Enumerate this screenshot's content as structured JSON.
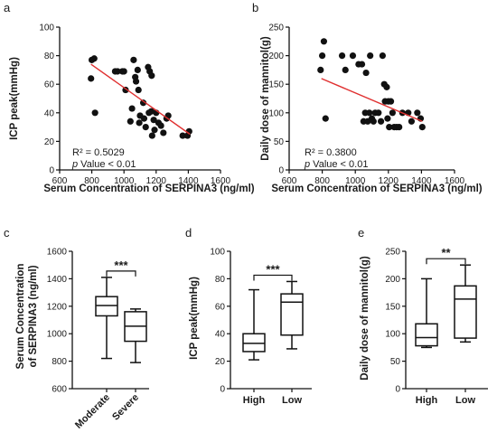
{
  "chart_data": [
    {
      "id": "a",
      "panel_label": "a",
      "type": "scatter",
      "xlabel": "Serum Concentration of SERPINA3 (ng/ml)",
      "ylabel": "ICP peak(mmHg)",
      "xlim": [
        600,
        1600
      ],
      "ylim": [
        0,
        100
      ],
      "xticks": [
        600,
        800,
        1000,
        1200,
        1400,
        1600
      ],
      "yticks": [
        0,
        20,
        40,
        60,
        80,
        100
      ],
      "points": [
        [
          795,
          64
        ],
        [
          800,
          77
        ],
        [
          815,
          78
        ],
        [
          820,
          40
        ],
        [
          945,
          69
        ],
        [
          960,
          69
        ],
        [
          990,
          69
        ],
        [
          1000,
          69
        ],
        [
          1010,
          56
        ],
        [
          1040,
          34
        ],
        [
          1050,
          43
        ],
        [
          1060,
          77
        ],
        [
          1070,
          65
        ],
        [
          1075,
          62
        ],
        [
          1085,
          70
        ],
        [
          1090,
          56
        ],
        [
          1095,
          33
        ],
        [
          1100,
          38
        ],
        [
          1120,
          47
        ],
        [
          1125,
          36
        ],
        [
          1135,
          30
        ],
        [
          1150,
          72
        ],
        [
          1155,
          40
        ],
        [
          1160,
          69
        ],
        [
          1170,
          41
        ],
        [
          1172,
          66
        ],
        [
          1175,
          24
        ],
        [
          1185,
          35
        ],
        [
          1190,
          28
        ],
        [
          1200,
          40
        ],
        [
          1215,
          33
        ],
        [
          1230,
          31
        ],
        [
          1245,
          26
        ],
        [
          1265,
          36
        ],
        [
          1275,
          38
        ],
        [
          1365,
          24
        ],
        [
          1395,
          24
        ],
        [
          1405,
          27
        ]
      ],
      "fit": [
        [
          795,
          74
        ],
        [
          1410,
          25
        ]
      ],
      "annotation": [
        "R² = 0.5029",
        "p Value < 0.01"
      ]
    },
    {
      "id": "b",
      "panel_label": "b",
      "type": "scatter",
      "xlabel": "Serum Concentration of SERPINA3 (ng/ml)",
      "ylabel": "Daily dose of mannitol(g)",
      "xlim": [
        600,
        1600
      ],
      "ylim": [
        0,
        250
      ],
      "xticks": [
        600,
        800,
        1000,
        1200,
        1400,
        1600
      ],
      "yticks": [
        0,
        50,
        100,
        150,
        200,
        250
      ],
      "points": [
        [
          790,
          175
        ],
        [
          800,
          200
        ],
        [
          810,
          225
        ],
        [
          820,
          90
        ],
        [
          920,
          200
        ],
        [
          940,
          175
        ],
        [
          985,
          200
        ],
        [
          1020,
          185
        ],
        [
          1040,
          185
        ],
        [
          1050,
          85
        ],
        [
          1060,
          100
        ],
        [
          1065,
          170
        ],
        [
          1075,
          85
        ],
        [
          1085,
          100
        ],
        [
          1090,
          200
        ],
        [
          1100,
          90
        ],
        [
          1110,
          85
        ],
        [
          1120,
          100
        ],
        [
          1140,
          100
        ],
        [
          1155,
          85
        ],
        [
          1165,
          200
        ],
        [
          1175,
          150
        ],
        [
          1180,
          120
        ],
        [
          1190,
          145
        ],
        [
          1195,
          90
        ],
        [
          1200,
          120
        ],
        [
          1205,
          75
        ],
        [
          1215,
          120
        ],
        [
          1225,
          100
        ],
        [
          1235,
          75
        ],
        [
          1250,
          75
        ],
        [
          1265,
          75
        ],
        [
          1285,
          100
        ],
        [
          1320,
          100
        ],
        [
          1340,
          85
        ],
        [
          1375,
          100
        ],
        [
          1395,
          90
        ],
        [
          1405,
          75
        ]
      ],
      "fit": [
        [
          795,
          160
        ],
        [
          1405,
          85
        ]
      ],
      "annotation": [
        "R² = 0.3800",
        "p Value < 0.01"
      ]
    },
    {
      "id": "c",
      "panel_label": "c",
      "type": "box",
      "ylabel": "Serum Concentration of SERPINA3 (ng/ml)",
      "ylim": [
        600,
        1600
      ],
      "yticks": [
        600,
        800,
        1000,
        1200,
        1400,
        1600
      ],
      "categories": [
        "Moderate",
        "Severe"
      ],
      "boxes": [
        {
          "min": 820,
          "q1": 1130,
          "median": 1205,
          "q3": 1270,
          "max": 1410
        },
        {
          "min": 790,
          "q1": 945,
          "median": 1055,
          "q3": 1160,
          "max": 1180
        }
      ],
      "significance": "***"
    },
    {
      "id": "d",
      "panel_label": "d",
      "type": "box",
      "ylabel": "ICP peak(mmHg)",
      "ylim": [
        0,
        100
      ],
      "yticks": [
        0,
        20,
        40,
        60,
        80,
        100
      ],
      "categories": [
        "High",
        "Low"
      ],
      "boxes": [
        {
          "min": 21,
          "q1": 27,
          "median": 33,
          "q3": 40,
          "max": 72
        },
        {
          "min": 29,
          "q1": 39,
          "median": 63,
          "q3": 69,
          "max": 78
        }
      ],
      "significance": "***"
    },
    {
      "id": "e",
      "panel_label": "e",
      "type": "box",
      "ylabel": "Daily dose of mannitol(g)",
      "ylim": [
        0,
        250
      ],
      "yticks": [
        0,
        50,
        100,
        150,
        200,
        250
      ],
      "categories": [
        "High",
        "Low"
      ],
      "boxes": [
        {
          "min": 75,
          "q1": 78,
          "median": 93,
          "q3": 118,
          "max": 200
        },
        {
          "min": 85,
          "q1": 92,
          "median": 163,
          "q3": 187,
          "max": 225
        }
      ],
      "significance": "**"
    }
  ],
  "colors": {
    "point": "#111111",
    "fit_line": "#e03030",
    "axis": "#111111"
  }
}
